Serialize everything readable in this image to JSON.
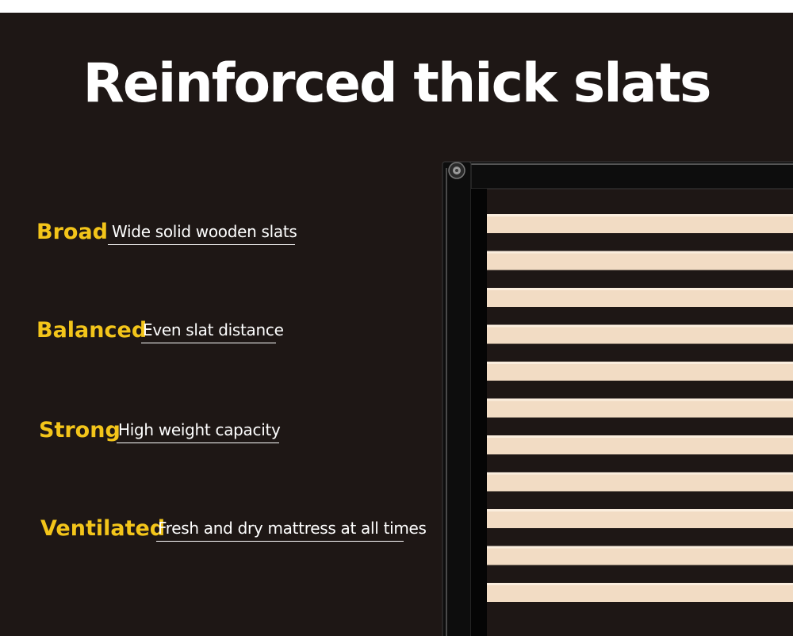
{
  "headline": "Reinforced thick slats",
  "features": [
    {
      "word": "Broad",
      "description": "Wide solid wooden slats"
    },
    {
      "word": "Balanced",
      "description": "Even slat distance"
    },
    {
      "word": "Strong",
      "description": "High weight capacity"
    },
    {
      "word": "Ventilated",
      "description": "Fresh and dry mattress at all times"
    }
  ],
  "colors": {
    "background": "#1e1715",
    "headline": "#ffffff",
    "accent": "#f3c51a",
    "slat": "#f2dcc4",
    "frame": "#0c0c0c"
  }
}
